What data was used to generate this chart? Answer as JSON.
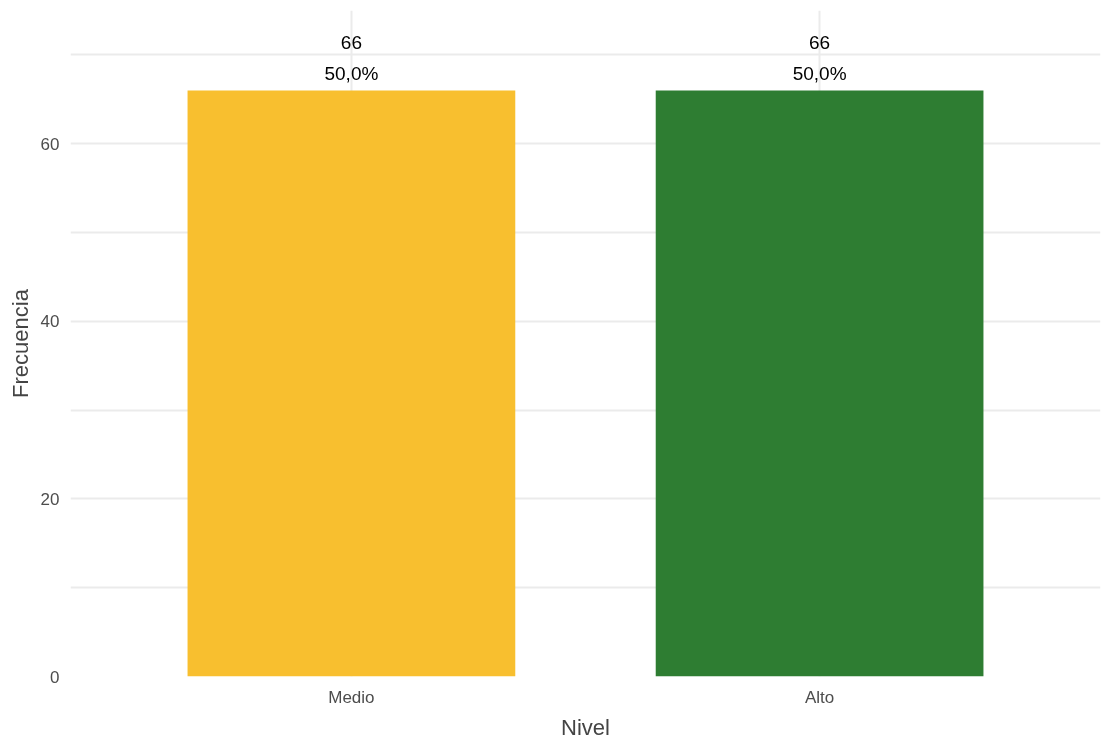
{
  "chart_data": {
    "type": "bar",
    "xlabel": "Nivel",
    "ylabel": "Frecuencia",
    "categories": [
      "Medio",
      "Alto"
    ],
    "values": [
      66,
      66
    ],
    "colors": [
      "#f8bf2f",
      "#2e7d32"
    ],
    "value_labels": [
      "66\n50,0%",
      "66\n50,0%"
    ],
    "ylim": [
      0,
      75
    ],
    "yticks": [
      0,
      {
        "value": 10,
        "label": null
      },
      20,
      {
        "value": 30,
        "label": null
      },
      40,
      {
        "value": 50,
        "label": null
      },
      60,
      {
        "value": 70,
        "label": null
      }
    ],
    "grid": true
  }
}
